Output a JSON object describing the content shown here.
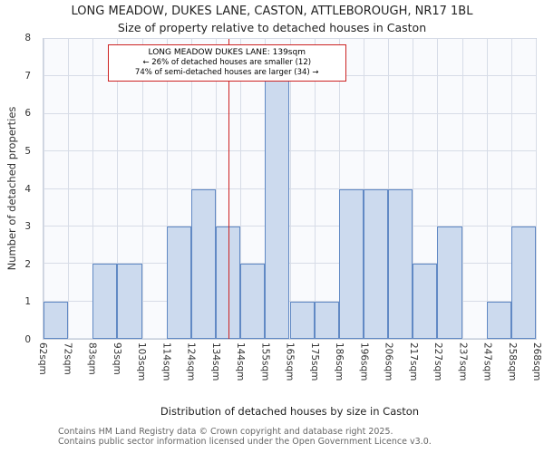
{
  "title": "LONG MEADOW, DUKES LANE, CASTON, ATTLEBOROUGH, NR17 1BL",
  "subtitle": "Size of property relative to detached houses in Caston",
  "ylabel": "Number of detached properties",
  "xlabel": "Distribution of detached houses by size in Caston",
  "footer": {
    "line1": "Contains HM Land Registry data © Crown copyright and database right 2025.",
    "line2": "Contains public sector information licensed under the Open Government Licence v3.0."
  },
  "annotation": {
    "line1": "LONG MEADOW DUKES LANE: 139sqm",
    "line2": "← 26% of detached houses are smaller (12)",
    "line3": "74% of semi-detached houses are larger (34) →"
  },
  "chart_data": {
    "type": "bar",
    "title": "LONG MEADOW, DUKES LANE, CASTON, ATTLEBOROUGH, NR17 1BL — Size of property relative to detached houses in Caston",
    "xlabel": "Distribution of detached houses by size in Caston",
    "ylabel": "Number of detached properties",
    "bin_edge_labels": [
      "62sqm",
      "72sqm",
      "83sqm",
      "93sqm",
      "103sqm",
      "114sqm",
      "124sqm",
      "134sqm",
      "144sqm",
      "155sqm",
      "165sqm",
      "175sqm",
      "186sqm",
      "196sqm",
      "206sqm",
      "217sqm",
      "227sqm",
      "237sqm",
      "247sqm",
      "258sqm",
      "268sqm"
    ],
    "values": [
      1,
      0,
      2,
      2,
      0,
      3,
      4,
      3,
      2,
      7,
      1,
      1,
      4,
      4,
      4,
      2,
      3,
      0,
      1,
      3
    ],
    "ylim": [
      0,
      8
    ],
    "yticks": [
      0,
      1,
      2,
      3,
      4,
      5,
      6,
      7,
      8
    ],
    "grid": true,
    "legend": "none",
    "marker": {
      "label": "139sqm",
      "position_fraction": 0.375,
      "color": "#cc2222"
    },
    "bar_fill": "#ccdaee",
    "bar_border": "#6189c4"
  }
}
